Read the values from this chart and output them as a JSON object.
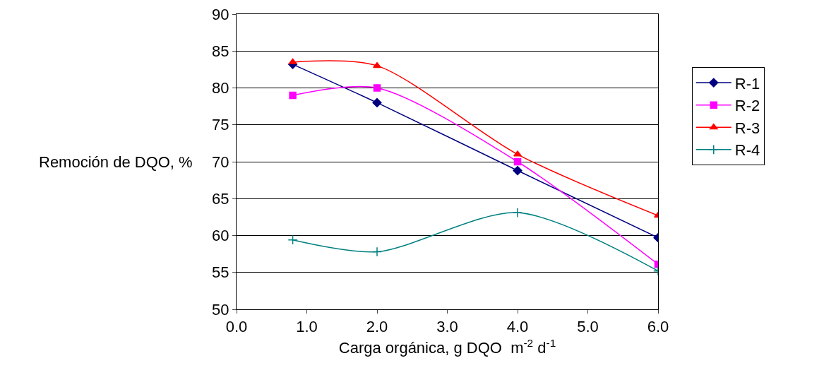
{
  "chart_data": {
    "type": "line",
    "xlabel": "Carga orgánica, g DQO  m$^{-2}$ d$^{-1}$",
    "ylabel": "Remoción de DQO, %",
    "x": [
      0.8,
      2,
      4,
      6
    ],
    "series": [
      {
        "name": "R-1",
        "color": "#000080",
        "marker": "diamond",
        "values": [
          83.2,
          78,
          68.8,
          59.7
        ]
      },
      {
        "name": "R-2",
        "color": "#ff00ff",
        "marker": "square",
        "values": [
          79,
          80,
          70,
          56.1
        ]
      },
      {
        "name": "R-3",
        "color": "#ff0000",
        "marker": "triangle",
        "values": [
          83.5,
          83,
          71,
          62.7
        ]
      },
      {
        "name": "R-4",
        "color": "#008080",
        "marker": "cross",
        "values": [
          59.4,
          57.8,
          63.1,
          55.2
        ]
      }
    ],
    "xlim": [
      0,
      6
    ],
    "xticks": [
      {
        "value": 0,
        "label": "0.0"
      },
      {
        "value": 1,
        "label": "1.0"
      },
      {
        "value": 2,
        "label": "2.0"
      },
      {
        "value": 3,
        "label": "3.0"
      },
      {
        "value": 4,
        "label": "4.0"
      },
      {
        "value": 5,
        "label": "5.0"
      },
      {
        "value": 6,
        "label": "6.0"
      }
    ],
    "ylim": [
      50,
      90
    ],
    "yticks": [
      50,
      55,
      60,
      65,
      70,
      75,
      80,
      85,
      90
    ],
    "grid": "y",
    "legend": "right"
  }
}
